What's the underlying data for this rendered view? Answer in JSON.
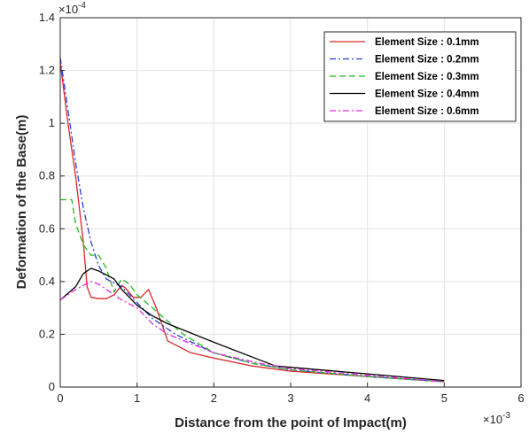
{
  "chart_data": {
    "type": "line",
    "title": "",
    "xlabel": "Distance from the point of Impact(m)",
    "ylabel": "Deformation of the Base(m)",
    "x_exponent": "×10",
    "x_exponent_power": "-3",
    "y_exponent": "×10",
    "y_exponent_power": "-4",
    "xlim": [
      0,
      6
    ],
    "ylim": [
      0,
      1.4
    ],
    "x_scale_note": "x values in units of 1e-3 m; y values in units of 1e-4 m",
    "x_ticks": [
      "0",
      "1",
      "2",
      "3",
      "4",
      "5",
      "6"
    ],
    "y_ticks": [
      "0",
      "0.2",
      "0.4",
      "0.6",
      "0.8",
      "1",
      "1.2",
      "1.4"
    ],
    "grid": true,
    "legend_position": "top-right",
    "series": [
      {
        "name": "Element Size : 0.1mm",
        "color": "#d62728",
        "dash": "solid",
        "x": [
          0,
          0.1,
          0.2,
          0.3,
          0.35,
          0.4,
          0.5,
          0.6,
          0.7,
          0.8,
          0.85,
          0.95,
          1.05,
          1.15,
          1.25,
          1.4,
          1.7,
          2.0,
          2.5,
          3.0,
          4.0,
          5.0
        ],
        "y": [
          1.23,
          1.0,
          0.8,
          0.55,
          0.38,
          0.34,
          0.335,
          0.335,
          0.35,
          0.385,
          0.375,
          0.34,
          0.34,
          0.37,
          0.3,
          0.175,
          0.13,
          0.11,
          0.08,
          0.06,
          0.04,
          0.02
        ]
      },
      {
        "name": "Element Size : 0.2mm",
        "color": "#2b3bd6",
        "dash": "dashdot",
        "x": [
          0,
          0.1,
          0.2,
          0.3,
          0.4,
          0.5,
          0.6,
          0.8,
          1.0,
          1.2,
          1.5,
          2.0,
          2.5,
          3.0,
          4.0,
          5.0
        ],
        "y": [
          1.25,
          1.05,
          0.85,
          0.68,
          0.55,
          0.46,
          0.41,
          0.38,
          0.32,
          0.26,
          0.2,
          0.13,
          0.09,
          0.065,
          0.04,
          0.02
        ]
      },
      {
        "name": "Element Size : 0.3mm",
        "color": "#22b922",
        "dash": "dashed",
        "x": [
          0,
          0.15,
          0.2,
          0.3,
          0.4,
          0.5,
          0.6,
          0.7,
          0.8,
          0.9,
          1.0,
          1.2,
          1.4,
          1.6,
          2.0,
          2.5,
          3.0,
          4.0,
          5.0
        ],
        "y": [
          0.71,
          0.71,
          0.62,
          0.54,
          0.5,
          0.5,
          0.45,
          0.36,
          0.41,
          0.39,
          0.35,
          0.3,
          0.25,
          0.2,
          0.13,
          0.09,
          0.065,
          0.04,
          0.02
        ]
      },
      {
        "name": "Element Size : 0.4mm",
        "color": "#000000",
        "dash": "solid",
        "x": [
          0,
          0.2,
          0.3,
          0.4,
          0.5,
          0.7,
          0.8,
          1.0,
          1.2,
          1.4,
          2.0,
          2.8,
          3.0,
          4.0,
          5.0
        ],
        "y": [
          0.33,
          0.38,
          0.43,
          0.45,
          0.44,
          0.41,
          0.37,
          0.31,
          0.27,
          0.24,
          0.17,
          0.08,
          0.075,
          0.05,
          0.025
        ]
      },
      {
        "name": "Element Size : 0.6mm",
        "color": "#e22be2",
        "dash": "dashdot",
        "x": [
          0,
          0.2,
          0.4,
          0.5,
          0.6,
          0.8,
          1.0,
          1.2,
          1.4,
          2.0,
          2.6,
          3.0,
          4.0,
          5.0
        ],
        "y": [
          0.33,
          0.37,
          0.4,
          0.39,
          0.37,
          0.33,
          0.3,
          0.24,
          0.2,
          0.13,
          0.09,
          0.07,
          0.045,
          0.02
        ]
      }
    ]
  }
}
